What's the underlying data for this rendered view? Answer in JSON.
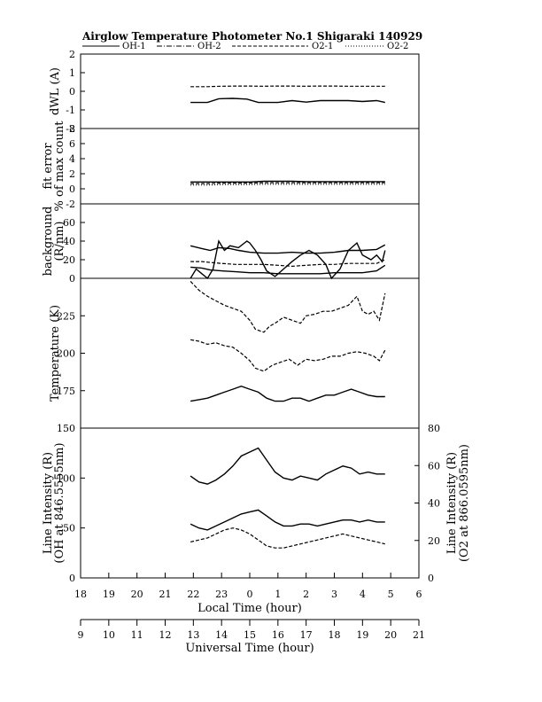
{
  "title": "Airglow Temperature Photometer No.1   Shigaraki   140929",
  "legend": [
    {
      "label": "OH-1",
      "style": "solid"
    },
    {
      "label": "OH-2",
      "style": "dashdot"
    },
    {
      "label": "O2-1",
      "style": "dashed"
    },
    {
      "label": "O2-2",
      "style": "dotted"
    }
  ],
  "chart_data": [
    {
      "type": "line",
      "id": "dwl",
      "ylabel": "dWL (A)",
      "ylim": [
        -2,
        2
      ],
      "yticks": [
        -2,
        -1,
        0,
        1,
        2
      ],
      "series": [
        {
          "name": "upper",
          "style": "dashed",
          "x": [
            21.9,
            22.5,
            23.0,
            23.5,
            24.0,
            24.5,
            25.0,
            25.5,
            26.0,
            26.5,
            27.0,
            27.5,
            28.0,
            28.5,
            28.8
          ],
          "y": [
            0.25,
            0.25,
            0.27,
            0.28,
            0.28,
            0.27,
            0.28,
            0.28,
            0.27,
            0.28,
            0.28,
            0.27,
            0.27,
            0.27,
            0.27
          ]
        },
        {
          "name": "lower",
          "style": "solid",
          "x": [
            21.9,
            22.5,
            22.9,
            23.4,
            23.9,
            24.3,
            24.6,
            25.0,
            25.5,
            26.0,
            26.5,
            27.0,
            27.5,
            28.0,
            28.5,
            28.8
          ],
          "y": [
            -0.6,
            -0.6,
            -0.4,
            -0.38,
            -0.42,
            -0.6,
            -0.6,
            -0.6,
            -0.5,
            -0.58,
            -0.5,
            -0.5,
            -0.5,
            -0.55,
            -0.5,
            -0.6
          ]
        }
      ]
    },
    {
      "type": "line",
      "id": "fit-error",
      "ylabel": "fit error",
      "ylabel2": "% of max count",
      "ylim": [
        -2,
        8
      ],
      "yticks": [
        -2,
        0,
        2,
        4,
        6,
        8
      ],
      "series": [
        {
          "name": "a",
          "style": "solid",
          "x": [
            21.9,
            22.5,
            23.0,
            23.5,
            24.0,
            24.5,
            25.0,
            25.5,
            26.0,
            26.5,
            27.0,
            27.5,
            28.0,
            28.5,
            28.8
          ],
          "y": [
            0.9,
            0.9,
            0.9,
            0.9,
            0.9,
            1.0,
            1.0,
            1.0,
            0.95,
            0.95,
            0.95,
            0.95,
            0.95,
            0.95,
            0.95
          ]
        },
        {
          "name": "b",
          "style": "dashed",
          "x": [
            21.9,
            22.5,
            23.0,
            23.5,
            24.0,
            24.5,
            25.0,
            25.5,
            26.0,
            26.5,
            27.0,
            27.5,
            28.0,
            28.5,
            28.8
          ],
          "y": [
            0.7,
            0.7,
            0.75,
            0.75,
            0.75,
            0.8,
            0.8,
            0.8,
            0.8,
            0.8,
            0.8,
            0.8,
            0.8,
            0.8,
            0.8
          ]
        },
        {
          "name": "c",
          "style": "dotted",
          "x": [
            21.9,
            22.5,
            23.0,
            23.5,
            24.0,
            24.5,
            25.0,
            25.5,
            26.0,
            26.5,
            27.0,
            27.5,
            28.0,
            28.5,
            28.8
          ],
          "y": [
            0.5,
            0.5,
            0.55,
            0.55,
            0.55,
            0.6,
            0.6,
            0.6,
            0.6,
            0.6,
            0.6,
            0.6,
            0.6,
            0.6,
            0.6
          ]
        }
      ]
    },
    {
      "type": "line",
      "id": "background",
      "ylabel": "background",
      "ylabel2": "(R/nm)",
      "ylim": [
        0,
        80
      ],
      "yticks": [
        0,
        20,
        40,
        60
      ],
      "series": [
        {
          "name": "bg-1",
          "style": "solid",
          "x": [
            21.9,
            22.3,
            22.6,
            22.9,
            23.3,
            23.6,
            24.0,
            24.5,
            25.0,
            25.5,
            26.0,
            26.5,
            27.0,
            27.5,
            28.0,
            28.5,
            28.8
          ],
          "y": [
            35,
            32,
            30,
            33,
            32,
            30,
            28,
            27,
            27,
            28,
            27,
            27,
            28,
            30,
            30,
            31,
            36
          ]
        },
        {
          "name": "bg-2",
          "style": "dashed",
          "x": [
            21.9,
            22.3,
            22.6,
            23.0,
            23.5,
            24.0,
            24.5,
            25.0,
            25.5,
            26.0,
            26.5,
            27.0,
            27.5,
            28.0,
            28.5,
            28.8
          ],
          "y": [
            18,
            18,
            17,
            16,
            15,
            15,
            15,
            14,
            13,
            14,
            15,
            15,
            16,
            16,
            16,
            20
          ]
        },
        {
          "name": "bg-3",
          "style": "solid",
          "x": [
            21.9,
            22.3,
            22.6,
            23.0,
            23.5,
            24.0,
            24.5,
            25.0,
            25.5,
            26.0,
            26.5,
            27.0,
            27.5,
            28.0,
            28.5,
            28.8
          ],
          "y": [
            12,
            11,
            9,
            8,
            7,
            6,
            6,
            5,
            5,
            5,
            5,
            6,
            6,
            6,
            8,
            14
          ]
        },
        {
          "name": "bg-4",
          "style": "solid",
          "x": [
            21.9,
            22.1,
            22.3,
            22.5,
            22.7,
            22.9,
            23.1,
            23.3,
            23.6,
            23.9,
            24.0,
            24.2,
            24.4,
            24.6,
            24.9,
            25.2,
            25.5,
            25.8,
            26.1,
            26.4,
            26.7,
            26.9,
            27.2,
            27.5,
            27.8,
            28.0,
            28.3,
            28.5,
            28.7,
            28.8
          ],
          "y": [
            0,
            10,
            5,
            0,
            10,
            40,
            30,
            35,
            33,
            40,
            38,
            30,
            20,
            8,
            2,
            10,
            18,
            25,
            30,
            25,
            15,
            0,
            10,
            30,
            38,
            25,
            20,
            25,
            18,
            30
          ]
        }
      ]
    },
    {
      "type": "line",
      "id": "temperature",
      "ylabel": "Temperature (K)",
      "ylim": [
        150,
        250
      ],
      "yticks": [
        175,
        200,
        225
      ],
      "series": [
        {
          "name": "T-1",
          "style": "dashed",
          "x": [
            21.9,
            22.2,
            22.5,
            22.8,
            23.1,
            23.4,
            23.7,
            24.0,
            24.2,
            24.5,
            24.7,
            24.9,
            25.2,
            25.5,
            25.8,
            26.0,
            26.3,
            26.6,
            26.9,
            27.2,
            27.5,
            27.8,
            28.0,
            28.2,
            28.4,
            28.6,
            28.8
          ],
          "y": [
            248,
            242,
            238,
            235,
            232,
            230,
            228,
            222,
            216,
            214,
            218,
            220,
            224,
            222,
            220,
            225,
            226,
            228,
            228,
            230,
            232,
            238,
            228,
            226,
            228,
            222,
            240
          ]
        },
        {
          "name": "T-2",
          "style": "dashed",
          "x": [
            21.9,
            22.2,
            22.5,
            22.8,
            23.1,
            23.4,
            23.7,
            24.0,
            24.2,
            24.5,
            24.8,
            25.1,
            25.4,
            25.7,
            26.0,
            26.3,
            26.6,
            26.9,
            27.2,
            27.5,
            27.8,
            28.1,
            28.4,
            28.6,
            28.8
          ],
          "y": [
            209,
            208,
            206,
            207,
            205,
            204,
            200,
            195,
            190,
            188,
            192,
            194,
            196,
            192,
            196,
            195,
            196,
            198,
            198,
            200,
            201,
            200,
            198,
            195,
            202
          ]
        },
        {
          "name": "T-3",
          "style": "solid",
          "x": [
            21.9,
            22.2,
            22.5,
            22.8,
            23.1,
            23.4,
            23.7,
            24.0,
            24.3,
            24.6,
            24.9,
            25.2,
            25.5,
            25.8,
            26.1,
            26.4,
            26.7,
            27.0,
            27.3,
            27.6,
            27.9,
            28.2,
            28.5,
            28.8
          ],
          "y": [
            168,
            169,
            170,
            172,
            174,
            176,
            178,
            176,
            174,
            170,
            168,
            168,
            170,
            170,
            168,
            170,
            172,
            172,
            174,
            176,
            174,
            172,
            171,
            171
          ]
        }
      ]
    },
    {
      "type": "line",
      "id": "line-intensity",
      "ylabel": "Line Intensity (R)",
      "ylabel2": "(OH at 846.5555nm)",
      "ylim": [
        0,
        150
      ],
      "yticks": [
        0,
        50,
        100,
        150
      ],
      "y2label": "Line Intensity (R)",
      "y2label2": "(O2 at 866.0595nm)",
      "y2lim": [
        0,
        80
      ],
      "y2ticks": [
        0,
        20,
        40,
        60,
        80
      ],
      "series": [
        {
          "name": "I-1",
          "style": "solid",
          "x": [
            21.9,
            22.2,
            22.5,
            22.8,
            23.1,
            23.4,
            23.7,
            24.0,
            24.3,
            24.6,
            24.9,
            25.2,
            25.5,
            25.8,
            26.1,
            26.4,
            26.7,
            27.0,
            27.3,
            27.6,
            27.9,
            28.2,
            28.5,
            28.8
          ],
          "y": [
            102,
            96,
            94,
            98,
            104,
            112,
            122,
            126,
            130,
            118,
            106,
            100,
            98,
            102,
            100,
            98,
            104,
            108,
            112,
            110,
            104,
            106,
            104,
            104
          ]
        },
        {
          "name": "I-2",
          "style": "solid",
          "x": [
            21.9,
            22.2,
            22.5,
            22.8,
            23.1,
            23.4,
            23.7,
            24.0,
            24.3,
            24.6,
            24.9,
            25.2,
            25.5,
            25.8,
            26.1,
            26.4,
            26.7,
            27.0,
            27.3,
            27.6,
            27.9,
            28.2,
            28.5,
            28.8
          ],
          "y": [
            54,
            50,
            48,
            52,
            56,
            60,
            64,
            66,
            68,
            62,
            56,
            52,
            52,
            54,
            54,
            52,
            54,
            56,
            58,
            58,
            56,
            58,
            56,
            56
          ]
        },
        {
          "name": "I-3",
          "style": "dashed",
          "x": [
            21.9,
            22.2,
            22.5,
            22.8,
            23.1,
            23.4,
            23.7,
            24.0,
            24.3,
            24.6,
            24.9,
            25.2,
            25.5,
            25.8,
            26.1,
            26.4,
            26.7,
            27.0,
            27.3,
            27.6,
            27.9,
            28.2,
            28.5,
            28.8
          ],
          "y": [
            36,
            38,
            40,
            44,
            48,
            50,
            48,
            44,
            38,
            32,
            30,
            30,
            32,
            34,
            36,
            38,
            40,
            42,
            44,
            42,
            40,
            38,
            36,
            34
          ]
        }
      ]
    }
  ],
  "xaxis_local": {
    "label": "Local Time (hour)",
    "ticks": [
      18,
      19,
      20,
      21,
      22,
      23,
      24,
      25,
      26,
      27,
      28,
      29,
      30
    ],
    "ticklabels": [
      "18",
      "19",
      "20",
      "21",
      "22",
      "23",
      "0",
      "1",
      "2",
      "3",
      "4",
      "5",
      "6"
    ]
  },
  "xaxis_ut": {
    "label": "Universal Time (hour)",
    "ticks": [
      9,
      10,
      11,
      12,
      13,
      14,
      15,
      16,
      17,
      18,
      19,
      20,
      21
    ],
    "ticklabels": [
      "9",
      "10",
      "11",
      "12",
      "13",
      "14",
      "15",
      "16",
      "17",
      "18",
      "19",
      "20",
      "21"
    ]
  }
}
